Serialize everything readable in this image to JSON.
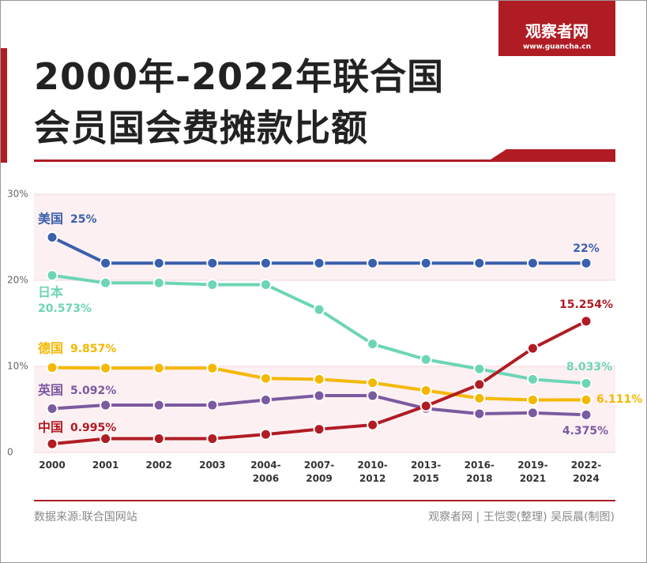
{
  "chart_data": {
    "type": "line",
    "title": [
      "2000年-2022年联合国",
      "会员国会费摊款比额"
    ],
    "logo": "观察者网",
    "logo_url": "www.guancha.cn",
    "source": "数据来源:联合国网站",
    "credit": "观察者网 | 王恺雯(整理) 吴辰晨(制图)",
    "categories": [
      "2000",
      "2001",
      "2002",
      "2003",
      "2004-2006",
      "2007-2009",
      "2010-2012",
      "2013-2015",
      "2016-2018",
      "2019-2021",
      "2022-2024"
    ],
    "ylim": [
      0,
      30
    ],
    "yticks": [
      0,
      {
        "value": 10,
        "label": "10%"
      },
      {
        "value": 20,
        "label": "20%"
      },
      {
        "value": 30,
        "label": "30%"
      }
    ],
    "series": [
      {
        "name": "美国",
        "color": "#3a5fad",
        "values": [
          25,
          22,
          22,
          22,
          22,
          22,
          22,
          22,
          22,
          22,
          22
        ],
        "value_labels": [
          "25%",
          null,
          null,
          null,
          null,
          null,
          null,
          null,
          null,
          null,
          "22%"
        ]
      },
      {
        "name": "日本",
        "color": "#6dd5b5",
        "values": [
          20.573,
          19.7,
          19.7,
          19.5,
          19.5,
          16.6,
          12.6,
          10.8,
          9.7,
          8.5,
          8.033
        ],
        "value_labels": [
          "20.573%",
          null,
          null,
          null,
          null,
          null,
          null,
          null,
          null,
          null,
          "8.033%"
        ]
      },
      {
        "name": "德国",
        "color": "#f5b800",
        "values": [
          9.857,
          9.8,
          9.8,
          9.8,
          8.6,
          8.5,
          8.1,
          7.2,
          6.3,
          6.1,
          6.111
        ],
        "value_labels": [
          "9.857%",
          null,
          null,
          null,
          null,
          null,
          null,
          null,
          null,
          null,
          "6.111%"
        ]
      },
      {
        "name": "英国",
        "color": "#7b5aa0",
        "values": [
          5.092,
          5.5,
          5.5,
          5.5,
          6.1,
          6.6,
          6.6,
          5.1,
          4.5,
          4.6,
          4.375
        ],
        "value_labels": [
          "5.092%",
          null,
          null,
          null,
          null,
          null,
          null,
          null,
          null,
          null,
          "4.375%"
        ]
      },
      {
        "name": "中国",
        "color": "#b01c24",
        "values": [
          0.995,
          1.6,
          1.6,
          1.6,
          2.1,
          2.7,
          3.2,
          5.4,
          7.9,
          12.1,
          15.254
        ],
        "value_labels": [
          "0.995%",
          null,
          null,
          null,
          null,
          null,
          null,
          null,
          null,
          null,
          "15.254%"
        ]
      }
    ]
  }
}
